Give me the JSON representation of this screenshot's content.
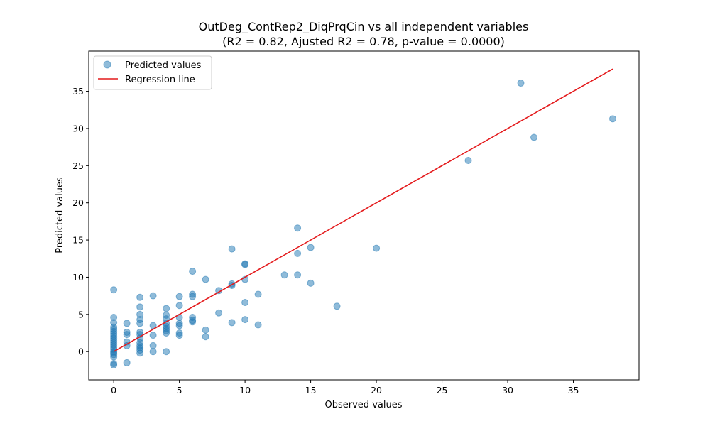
{
  "chart_data": {
    "type": "scatter",
    "title": "OutDeg_ContRep2_DiqPrqCin vs all independent variables",
    "subtitle": "(R2 = 0.82, Ajusted R2 = 0.78, p-value = 0.0000)",
    "xlabel": "Observed values",
    "ylabel": "Predicted values",
    "xlim": [
      -1.9,
      40.0
    ],
    "ylim": [
      -3.8,
      40.4
    ],
    "xticks": [
      0,
      5,
      10,
      15,
      20,
      25,
      30,
      35
    ],
    "yticks": [
      0,
      5,
      10,
      15,
      20,
      25,
      30,
      35
    ],
    "grid": false,
    "legend_position": "upper-left",
    "colors": {
      "points": "#1f77b4",
      "line": "#e41a1c"
    },
    "series": [
      {
        "name": "Predicted values",
        "kind": "scatter",
        "points": [
          [
            0,
            8.3
          ],
          [
            0,
            4.6
          ],
          [
            0,
            3.9
          ],
          [
            0,
            3.3
          ],
          [
            0,
            3.0
          ],
          [
            0,
            2.7
          ],
          [
            0,
            2.4
          ],
          [
            0,
            2.1
          ],
          [
            0,
            1.8
          ],
          [
            0,
            1.5
          ],
          [
            0,
            1.2
          ],
          [
            0,
            0.9
          ],
          [
            0,
            0.6
          ],
          [
            0,
            0.3
          ],
          [
            0,
            0.0
          ],
          [
            0,
            -0.2
          ],
          [
            0,
            -0.4
          ],
          [
            0,
            -0.7
          ],
          [
            0,
            -1.6
          ],
          [
            0,
            -1.8
          ],
          [
            1,
            3.8
          ],
          [
            1,
            2.6
          ],
          [
            1,
            2.3
          ],
          [
            1,
            1.3
          ],
          [
            1,
            0.8
          ],
          [
            1,
            -1.5
          ],
          [
            2,
            7.3
          ],
          [
            2,
            6.0
          ],
          [
            2,
            5.0
          ],
          [
            2,
            4.3
          ],
          [
            2,
            3.8
          ],
          [
            2,
            2.6
          ],
          [
            2,
            2.3
          ],
          [
            2,
            1.8
          ],
          [
            2,
            1.2
          ],
          [
            2,
            0.8
          ],
          [
            2,
            0.5
          ],
          [
            2,
            0.2
          ],
          [
            2,
            -0.2
          ],
          [
            3,
            7.5
          ],
          [
            3,
            3.5
          ],
          [
            3,
            2.2
          ],
          [
            3,
            0.8
          ],
          [
            3,
            0.0
          ],
          [
            4,
            5.8
          ],
          [
            4,
            4.9
          ],
          [
            4,
            4.4
          ],
          [
            4,
            3.8
          ],
          [
            4,
            3.4
          ],
          [
            4,
            3.1
          ],
          [
            4,
            2.8
          ],
          [
            4,
            2.5
          ],
          [
            4,
            0.0
          ],
          [
            5,
            7.4
          ],
          [
            5,
            6.2
          ],
          [
            5,
            4.6
          ],
          [
            5,
            3.8
          ],
          [
            5,
            3.5
          ],
          [
            5,
            2.5
          ],
          [
            5,
            2.2
          ],
          [
            6,
            10.8
          ],
          [
            6,
            7.7
          ],
          [
            6,
            7.4
          ],
          [
            6,
            4.6
          ],
          [
            6,
            4.2
          ],
          [
            6,
            4.0
          ],
          [
            7,
            9.7
          ],
          [
            7,
            2.9
          ],
          [
            7,
            2.0
          ],
          [
            8,
            8.2
          ],
          [
            8,
            5.2
          ],
          [
            9,
            13.8
          ],
          [
            9,
            9.1
          ],
          [
            9,
            8.9
          ],
          [
            9,
            3.9
          ],
          [
            10,
            11.8
          ],
          [
            10,
            11.7
          ],
          [
            10,
            9.7
          ],
          [
            10,
            6.6
          ],
          [
            10,
            4.3
          ],
          [
            11,
            7.7
          ],
          [
            11,
            3.6
          ],
          [
            13,
            10.3
          ],
          [
            14,
            16.6
          ],
          [
            14,
            13.2
          ],
          [
            14,
            10.3
          ],
          [
            15,
            14.0
          ],
          [
            15,
            9.2
          ],
          [
            17,
            6.1
          ],
          [
            20,
            13.9
          ],
          [
            27,
            25.7
          ],
          [
            31,
            36.1
          ],
          [
            32,
            28.8
          ],
          [
            38,
            31.3
          ]
        ]
      },
      {
        "name": "Regression line",
        "kind": "line",
        "points": [
          [
            0,
            0
          ],
          [
            38,
            38
          ]
        ]
      }
    ]
  }
}
